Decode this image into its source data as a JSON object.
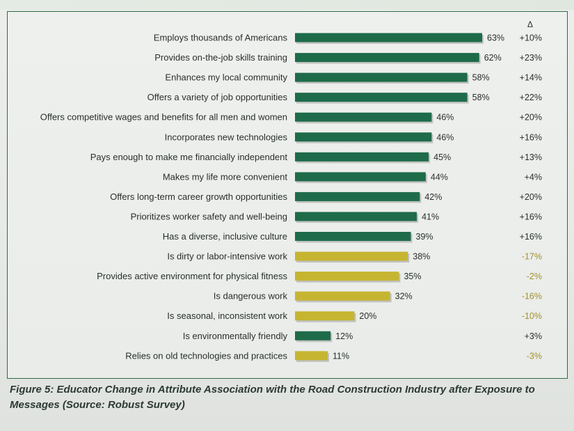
{
  "caption": "Figure 5: Educator Change in Attribute Association with the Road Construction Industry after Exposure to Messages (Source: Robust Survey)",
  "colors": {
    "positive": "#1e6b4a",
    "negative": "#c6b531",
    "positive_text": "#2a2f2c",
    "negative_text": "#a3902a",
    "label_text": "#2a2f2c"
  },
  "chart_data": {
    "type": "bar",
    "orientation": "horizontal",
    "title": "",
    "xlabel": "",
    "ylabel": "",
    "xlim": [
      0,
      100
    ],
    "delta_header": "Δ",
    "value_suffix": "%",
    "categories": [
      "Employs thousands of Americans",
      "Provides on-the-job skills training",
      "Enhances my local community",
      "Offers a variety of job opportunities",
      "Offers competitive wages and benefits for all men and women",
      "Incorporates new technologies",
      "Pays enough to make me financially independent",
      "Makes my life more convenient",
      "Offers long-term career growth opportunities",
      "Prioritizes worker safety and well-being",
      "Has a diverse, inclusive culture",
      "Is dirty or labor-intensive work",
      "Provides active environment for physical fitness",
      "Is dangerous work",
      "Is seasonal, inconsistent work",
      "Is environmentally friendly",
      "Relies on old technologies and practices"
    ],
    "values": [
      63,
      62,
      58,
      58,
      46,
      46,
      45,
      44,
      42,
      41,
      39,
      38,
      35,
      32,
      20,
      12,
      11
    ],
    "deltas": [
      "+10%",
      "+23%",
      "+14%",
      "+22%",
      "+20%",
      "+16%",
      "+13%",
      "+4%",
      "+20%",
      "+16%",
      "+16%",
      "-17%",
      "-2%",
      "-16%",
      "-10%",
      "+3%",
      "-3%"
    ],
    "bar_color_group": [
      "positive",
      "positive",
      "positive",
      "positive",
      "positive",
      "positive",
      "positive",
      "positive",
      "positive",
      "positive",
      "positive",
      "negative",
      "negative",
      "negative",
      "negative",
      "positive",
      "negative"
    ],
    "grid": false,
    "legend": "none"
  }
}
